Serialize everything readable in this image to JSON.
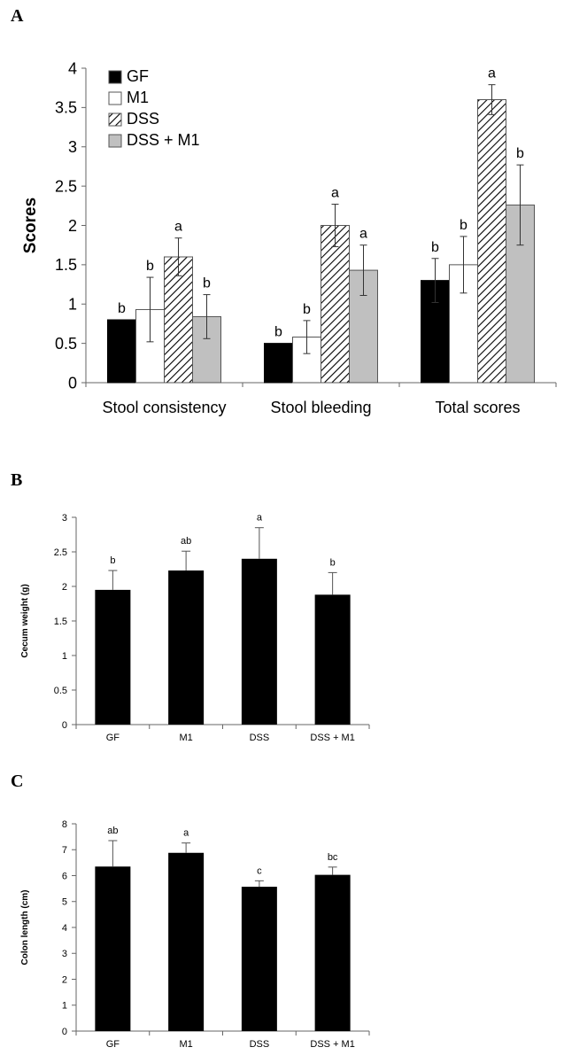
{
  "chart_data": [
    {
      "panel": "A",
      "type": "bar",
      "ylabel": "Scores",
      "ylim": [
        0,
        4
      ],
      "yticks": [
        "0",
        "0.5",
        "1",
        "1.5",
        "2",
        "2.5",
        "3",
        "3.5",
        "4"
      ],
      "categories": [
        "Stool consistency",
        "Stool bleeding",
        "Total scores"
      ],
      "legend_position": "top-left",
      "series": [
        {
          "name": "GF",
          "fill": "#000000",
          "pattern": "solid",
          "values": [
            0.8,
            0.5,
            1.3
          ],
          "errors": [
            0,
            0,
            0.28
          ],
          "letters": [
            "b",
            "b",
            "b"
          ]
        },
        {
          "name": "M1",
          "fill": "#ffffff",
          "pattern": "empty",
          "values": [
            0.93,
            0.58,
            1.5
          ],
          "errors": [
            0.41,
            0.21,
            0.36
          ],
          "letters": [
            "b",
            "b",
            "b"
          ]
        },
        {
          "name": "DSS",
          "fill": "#ffffff",
          "pattern": "hatched",
          "values": [
            1.6,
            2.0,
            3.6
          ],
          "errors": [
            0.24,
            0.27,
            0.19
          ],
          "letters": [
            "a",
            "a",
            "a"
          ]
        },
        {
          "name": "DSS + M1",
          "fill": "#c0c0c0",
          "pattern": "solid",
          "values": [
            0.84,
            1.43,
            2.26
          ],
          "errors": [
            0.28,
            0.32,
            0.51
          ],
          "letters": [
            "b",
            "a",
            "b"
          ]
        }
      ]
    },
    {
      "panel": "B",
      "type": "bar",
      "ylabel": "Cecum weight (g)",
      "ylim": [
        0,
        3
      ],
      "yticks": [
        "0",
        "0.5",
        "1",
        "1.5",
        "2",
        "2.5",
        "3"
      ],
      "categories": [
        "GF",
        "M1",
        "DSS",
        "DSS + M1"
      ],
      "values": [
        1.95,
        2.23,
        2.4,
        1.88
      ],
      "errors": [
        0.28,
        0.28,
        0.45,
        0.32
      ],
      "letters": [
        "b",
        "ab",
        "a",
        "b"
      ],
      "color": "#000000"
    },
    {
      "panel": "C",
      "type": "bar",
      "ylabel": "Colon length (cm)",
      "ylim": [
        0,
        8
      ],
      "yticks": [
        "0",
        "1",
        "2",
        "3",
        "4",
        "5",
        "6",
        "7",
        "8"
      ],
      "categories": [
        "GF",
        "M1",
        "DSS",
        "DSS + M1"
      ],
      "values": [
        6.35,
        6.88,
        5.57,
        6.03
      ],
      "errors": [
        1.0,
        0.38,
        0.23,
        0.3
      ],
      "letters": [
        "ab",
        "a",
        "c",
        "bc"
      ],
      "color": "#000000"
    }
  ]
}
